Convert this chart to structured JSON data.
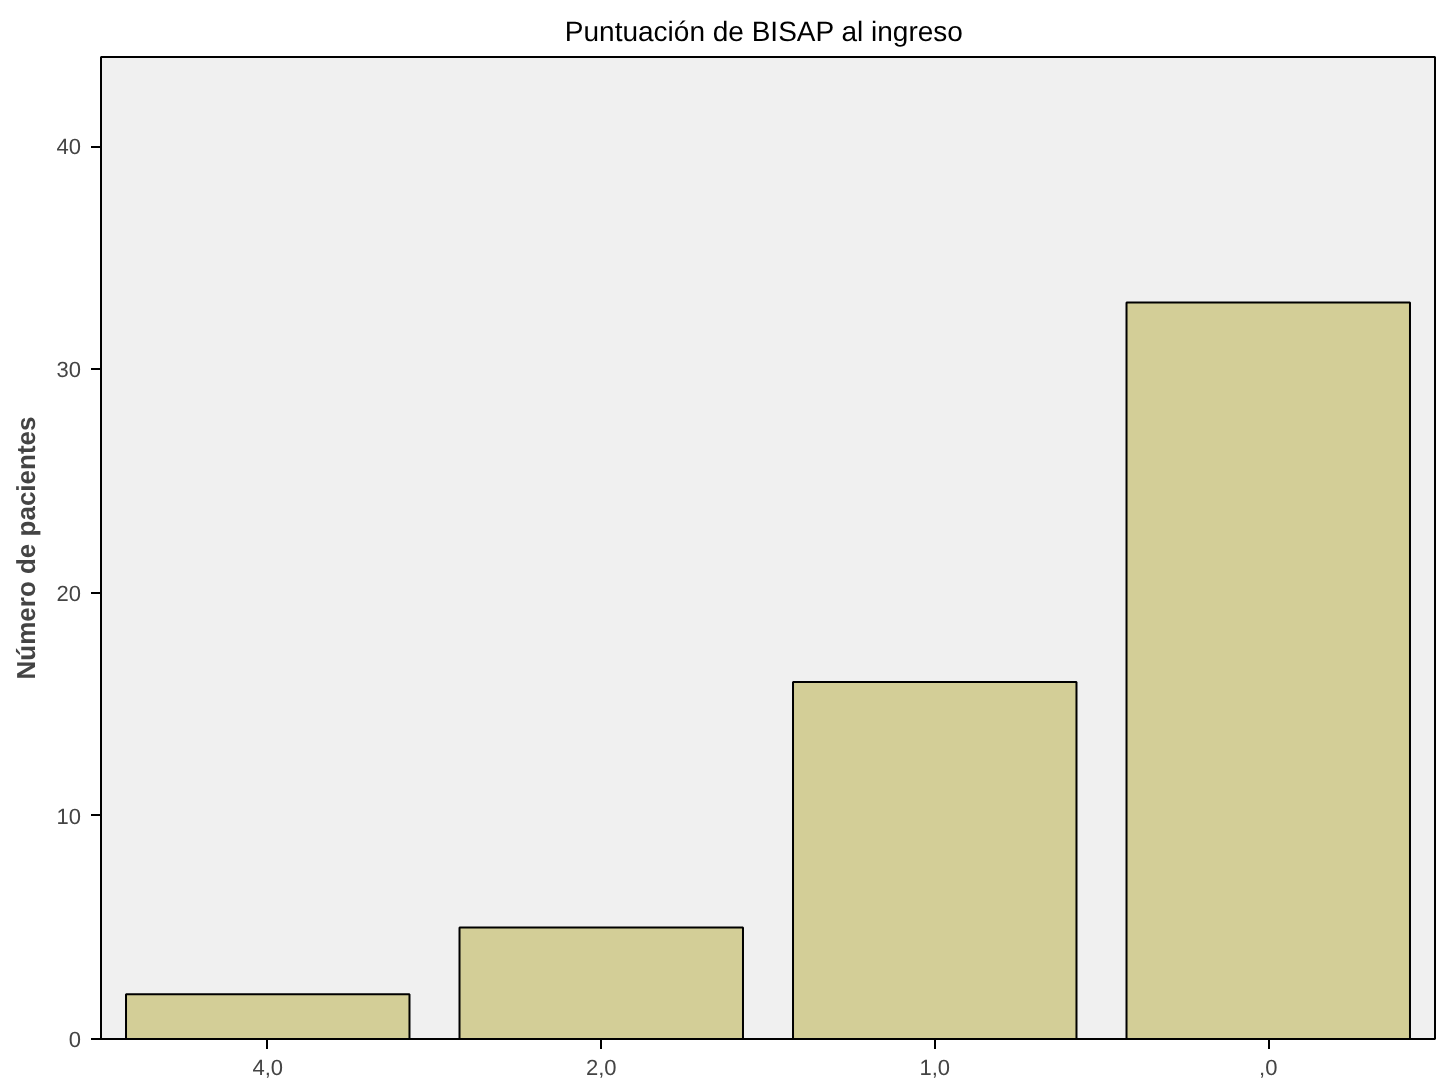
{
  "chart_data": {
    "type": "bar",
    "title": "Puntuación de  BISAP al ingreso",
    "ylabel": "Número de pacientes",
    "categories": [
      "4,0",
      "2,0",
      "1,0",
      ",0"
    ],
    "values": [
      2,
      5,
      16,
      33
    ],
    "color": "#d3ce97",
    "ylim": [
      0,
      44
    ],
    "yticks": [
      0,
      10,
      20,
      30,
      40
    ],
    "grid": false
  }
}
